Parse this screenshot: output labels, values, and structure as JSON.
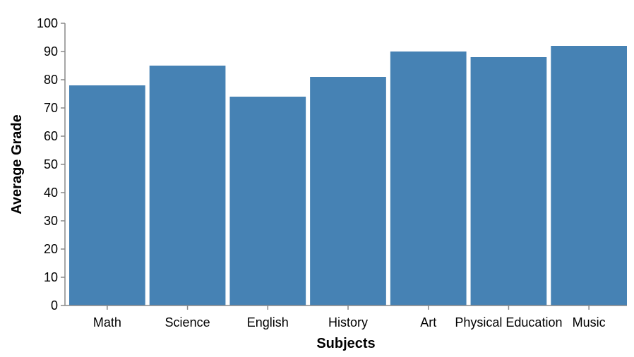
{
  "chart_data": {
    "type": "bar",
    "title": "",
    "xlabel": "Subjects",
    "ylabel": "Average Grade",
    "categories": [
      "Math",
      "Science",
      "English",
      "History",
      "Art",
      "Physical Education",
      "Music"
    ],
    "values": [
      78,
      85,
      74,
      81,
      90,
      88,
      92
    ],
    "ylim": [
      0,
      100
    ],
    "yticks": [
      0,
      10,
      20,
      30,
      40,
      50,
      60,
      70,
      80,
      90,
      100
    ],
    "grid": false,
    "legend": "none",
    "bar_color": "#4682b4",
    "axis_color": "#888888"
  }
}
